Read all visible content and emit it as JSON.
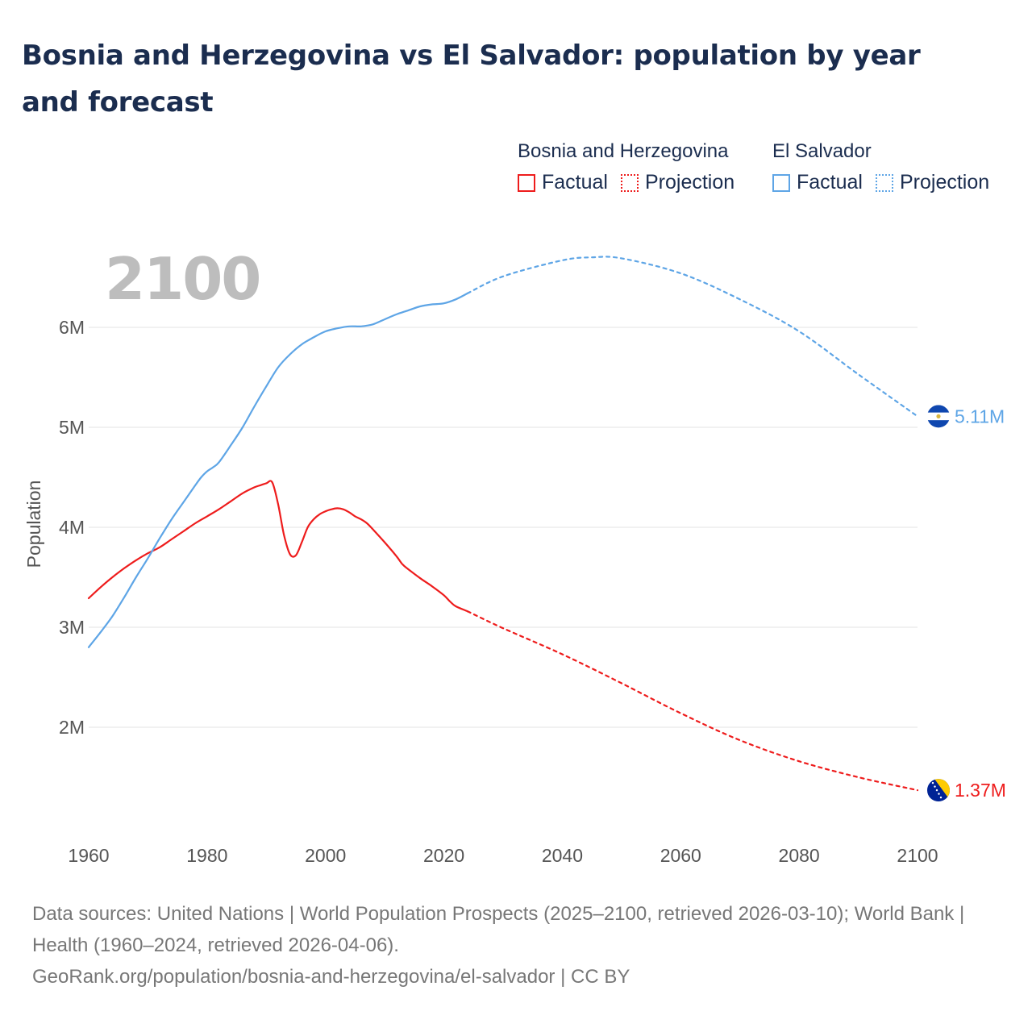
{
  "title": "Bosnia and Herzegovina vs El Salvador: population by year and forecast",
  "legend": {
    "groups": [
      {
        "name": "Bosnia and Herzegovina",
        "color": "#ee1c1c",
        "items": [
          {
            "label": "Factual",
            "style": "solid"
          },
          {
            "label": "Projection",
            "style": "dotted"
          }
        ]
      },
      {
        "name": "El Salvador",
        "color": "#5ea5e6",
        "items": [
          {
            "label": "Factual",
            "style": "solid"
          },
          {
            "label": "Projection",
            "style": "dotted"
          }
        ]
      }
    ]
  },
  "chart_data": {
    "type": "line",
    "title": "Bosnia and Herzegovina vs El Salvador: population by year and forecast",
    "year_label": "2100",
    "xlabel": "",
    "ylabel": "Population",
    "xlim": [
      1960,
      2100
    ],
    "ylim": [
      1000000,
      7000000
    ],
    "x_ticks": [
      1960,
      1980,
      2000,
      2020,
      2040,
      2060,
      2080,
      2100
    ],
    "x_tick_labels": [
      "1960",
      "1980",
      "2000",
      "2020",
      "2040",
      "2060",
      "2080",
      "2100"
    ],
    "y_ticks": [
      2000000,
      3000000,
      4000000,
      5000000,
      6000000
    ],
    "y_tick_labels": [
      "2M",
      "3M",
      "4M",
      "5M",
      "6M"
    ],
    "grid": true,
    "factual_end_year": 2024,
    "series": [
      {
        "name": "Bosnia and Herzegovina",
        "color": "#ee1c1c",
        "end_label": "1.37M",
        "points": [
          [
            1960,
            3290000
          ],
          [
            1962,
            3400000
          ],
          [
            1964,
            3500000
          ],
          [
            1966,
            3590000
          ],
          [
            1968,
            3670000
          ],
          [
            1970,
            3740000
          ],
          [
            1972,
            3800000
          ],
          [
            1974,
            3880000
          ],
          [
            1976,
            3960000
          ],
          [
            1978,
            4040000
          ],
          [
            1980,
            4110000
          ],
          [
            1982,
            4180000
          ],
          [
            1984,
            4260000
          ],
          [
            1986,
            4340000
          ],
          [
            1988,
            4400000
          ],
          [
            1989,
            4420000
          ],
          [
            1990,
            4440000
          ],
          [
            1991,
            4450000
          ],
          [
            1992,
            4230000
          ],
          [
            1993,
            3920000
          ],
          [
            1994,
            3730000
          ],
          [
            1995,
            3720000
          ],
          [
            1996,
            3850000
          ],
          [
            1997,
            4000000
          ],
          [
            1998,
            4080000
          ],
          [
            1999,
            4130000
          ],
          [
            2000,
            4160000
          ],
          [
            2001,
            4180000
          ],
          [
            2002,
            4190000
          ],
          [
            2003,
            4180000
          ],
          [
            2004,
            4150000
          ],
          [
            2005,
            4110000
          ],
          [
            2006,
            4080000
          ],
          [
            2007,
            4040000
          ],
          [
            2008,
            3980000
          ],
          [
            2010,
            3850000
          ],
          [
            2012,
            3710000
          ],
          [
            2013,
            3630000
          ],
          [
            2014,
            3580000
          ],
          [
            2016,
            3490000
          ],
          [
            2018,
            3410000
          ],
          [
            2020,
            3320000
          ],
          [
            2021,
            3260000
          ],
          [
            2022,
            3210000
          ],
          [
            2024,
            3160000
          ],
          [
            2030,
            2990000
          ],
          [
            2040,
            2730000
          ],
          [
            2050,
            2440000
          ],
          [
            2060,
            2140000
          ],
          [
            2070,
            1870000
          ],
          [
            2080,
            1660000
          ],
          [
            2090,
            1500000
          ],
          [
            2100,
            1370000
          ]
        ]
      },
      {
        "name": "El Salvador",
        "color": "#5ea5e6",
        "end_label": "5.11M",
        "points": [
          [
            1960,
            2800000
          ],
          [
            1962,
            2950000
          ],
          [
            1964,
            3110000
          ],
          [
            1966,
            3300000
          ],
          [
            1968,
            3500000
          ],
          [
            1970,
            3690000
          ],
          [
            1972,
            3890000
          ],
          [
            1974,
            4080000
          ],
          [
            1976,
            4250000
          ],
          [
            1978,
            4420000
          ],
          [
            1979,
            4500000
          ],
          [
            1980,
            4560000
          ],
          [
            1981,
            4600000
          ],
          [
            1982,
            4650000
          ],
          [
            1984,
            4820000
          ],
          [
            1986,
            5000000
          ],
          [
            1988,
            5210000
          ],
          [
            1990,
            5410000
          ],
          [
            1992,
            5600000
          ],
          [
            1994,
            5730000
          ],
          [
            1996,
            5830000
          ],
          [
            1998,
            5900000
          ],
          [
            2000,
            5960000
          ],
          [
            2002,
            5990000
          ],
          [
            2004,
            6010000
          ],
          [
            2006,
            6010000
          ],
          [
            2008,
            6030000
          ],
          [
            2010,
            6080000
          ],
          [
            2012,
            6130000
          ],
          [
            2014,
            6170000
          ],
          [
            2016,
            6210000
          ],
          [
            2018,
            6230000
          ],
          [
            2020,
            6240000
          ],
          [
            2022,
            6280000
          ],
          [
            2024,
            6340000
          ],
          [
            2030,
            6510000
          ],
          [
            2040,
            6670000
          ],
          [
            2045,
            6700000
          ],
          [
            2050,
            6690000
          ],
          [
            2060,
            6540000
          ],
          [
            2070,
            6280000
          ],
          [
            2080,
            5960000
          ],
          [
            2090,
            5530000
          ],
          [
            2100,
            5110000
          ]
        ]
      }
    ]
  },
  "footer": {
    "sources": "Data sources: United Nations | World Population Prospects (2025–2100, retrieved 2026-03-10); World Bank | Health (1960–2024, retrieved 2026-04-06).",
    "credit": "GeoRank.org/population/bosnia-and-herzegovina/el-salvador | CC BY"
  }
}
